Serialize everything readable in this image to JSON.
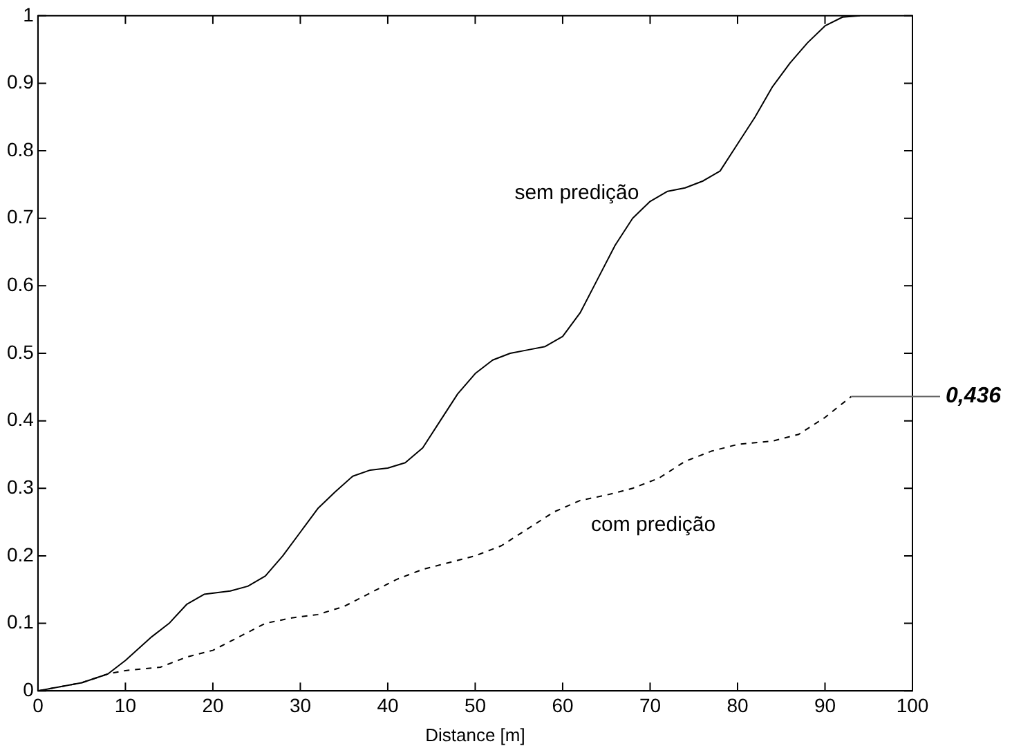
{
  "chart_data": {
    "type": "line",
    "xlabel": "Distance [m]",
    "xlim": [
      0,
      100
    ],
    "xticks": [
      0,
      10,
      20,
      30,
      40,
      50,
      60,
      70,
      80,
      90,
      100
    ],
    "ylim": [
      0,
      1
    ],
    "yticks": [
      0,
      0.1,
      0.2,
      0.3,
      0.4,
      0.5,
      0.6,
      0.7,
      0.8,
      0.9,
      1
    ],
    "grid": false,
    "legend": false,
    "marker": "none",
    "series": [
      {
        "name": "sem predição",
        "color": "#000000",
        "line_style": "solid",
        "x": [
          0,
          5,
          8,
          10,
          13,
          15,
          17,
          19,
          22,
          24,
          26,
          28,
          30,
          32,
          34,
          36,
          38,
          40,
          42,
          44,
          46,
          48,
          50,
          52,
          54,
          56,
          58,
          60,
          62,
          64,
          66,
          68,
          70,
          72,
          74,
          76,
          78,
          80,
          82,
          84,
          86,
          88,
          90,
          92,
          94
        ],
        "values": [
          0,
          0.012,
          0.025,
          0.045,
          0.08,
          0.1,
          0.128,
          0.143,
          0.148,
          0.155,
          0.17,
          0.2,
          0.235,
          0.27,
          0.295,
          0.318,
          0.327,
          0.33,
          0.338,
          0.36,
          0.4,
          0.44,
          0.47,
          0.49,
          0.5,
          0.505,
          0.51,
          0.525,
          0.56,
          0.61,
          0.66,
          0.7,
          0.725,
          0.74,
          0.745,
          0.755,
          0.77,
          0.81,
          0.85,
          0.895,
          0.93,
          0.96,
          0.985,
          0.998,
          1
        ]
      },
      {
        "name": "com predição",
        "color": "#000000",
        "line_style": "dashed",
        "x": [
          0,
          5,
          8,
          10,
          14,
          17,
          20,
          23,
          26,
          29,
          32,
          35,
          38,
          41,
          44,
          47,
          50,
          53,
          56,
          59,
          62,
          65,
          68,
          71,
          74,
          77,
          80,
          84,
          87,
          90,
          93
        ],
        "values": [
          0,
          0.012,
          0.025,
          0.03,
          0.035,
          0.05,
          0.06,
          0.08,
          0.1,
          0.108,
          0.113,
          0.125,
          0.145,
          0.165,
          0.18,
          0.19,
          0.2,
          0.215,
          0.24,
          0.265,
          0.282,
          0.29,
          0.3,
          0.315,
          0.34,
          0.355,
          0.365,
          0.37,
          0.38,
          0.405,
          0.436
        ]
      }
    ],
    "annotations": [
      {
        "text": "0,436",
        "x": 93,
        "y": 0.436
      }
    ]
  }
}
